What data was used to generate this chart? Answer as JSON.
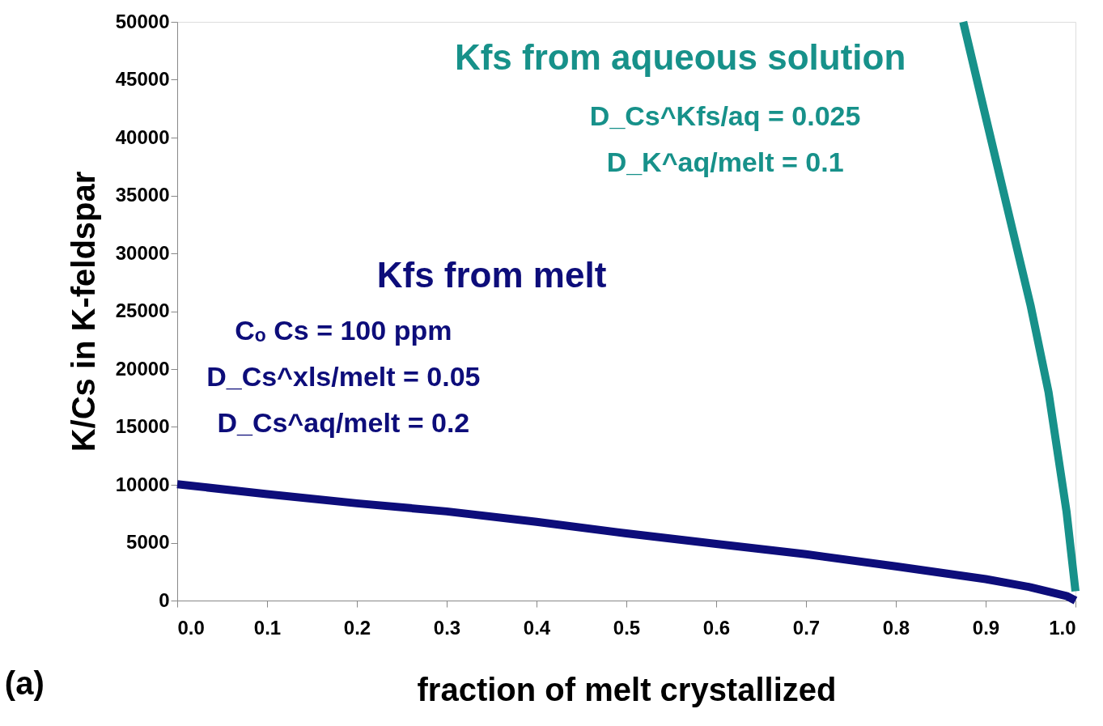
{
  "chart_data": {
    "type": "line",
    "xlabel": "fraction of melt crystallized",
    "ylabel": "K/Cs in K-feldspar",
    "series": [
      {
        "name": "Kfs from melt",
        "color": "#0d0d7a",
        "x": [
          0,
          0.1,
          0.2,
          0.3,
          0.4,
          0.5,
          0.6,
          0.7,
          0.8,
          0.9,
          0.95,
          0.99,
          1.0
        ],
        "values": [
          10050,
          9200,
          8400,
          7700,
          6800,
          5800,
          4900,
          4000,
          2950,
          1850,
          1150,
          400,
          0
        ]
      },
      {
        "name": "Kfs from aqueous solution",
        "color": "#17918a",
        "x": [
          0.875,
          0.9,
          0.93,
          0.95,
          0.97,
          0.99,
          1.0
        ],
        "values": [
          50000,
          41800,
          32000,
          25500,
          18000,
          7700,
          800
        ]
      }
    ],
    "annotations": [
      "Cₒ Cs = 100 ppm",
      "D_Cs^xls/melt = 0.05",
      "D_Cs^aq/melt = 0.2",
      "D_Cs^Kfs/aq = 0.025",
      "D_K^aq/melt = 0.1",
      "(a)"
    ],
    "xlim": [
      0,
      1.0
    ],
    "ylim": [
      0,
      50000
    ],
    "xticks": [
      {
        "value": 0,
        "label": "0.0"
      },
      0.1,
      0.2,
      0.3,
      0.4,
      0.5,
      0.6,
      0.7,
      0.8,
      0.9,
      {
        "value": 1.0,
        "label": "1.0"
      }
    ],
    "yticks": [
      0,
      5000,
      10000,
      15000,
      20000,
      25000,
      30000,
      35000,
      40000,
      45000,
      50000
    ],
    "grid": false,
    "legend": false,
    "marker": "none",
    "line_style": "solid"
  }
}
